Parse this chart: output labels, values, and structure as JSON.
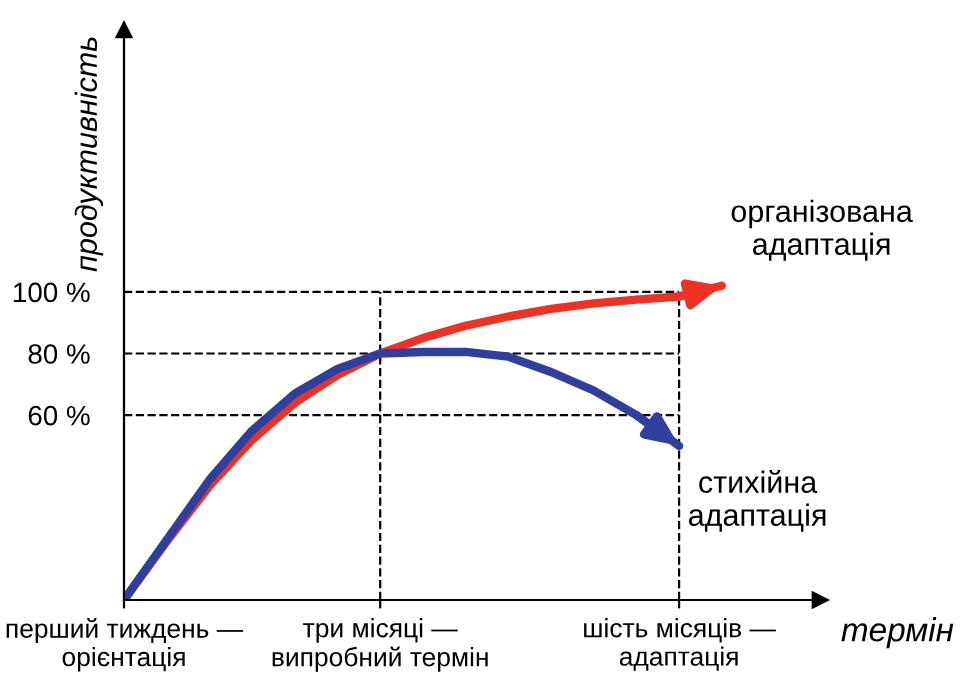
{
  "chart_data": {
    "type": "line",
    "xlabel": "термін",
    "ylabel": "продуктивність",
    "categories": [
      "перший тиждень —\nорієнтація",
      null,
      null,
      null,
      null,
      null,
      "три місяці —\nвипробний термін",
      null,
      null,
      null,
      null,
      null,
      null,
      "шість місяців —\nадаптація",
      null,
      null
    ],
    "ylim": [
      0,
      185
    ],
    "yticks": [
      {
        "value": 60,
        "label": "60 %"
      },
      {
        "value": 80,
        "label": "80 %"
      },
      {
        "value": 100,
        "label": "100 %"
      }
    ],
    "series": [
      {
        "name": "організована\nадаптація",
        "color": "#ee3124",
        "values": [
          0,
          19,
          37,
          52,
          64,
          73,
          80,
          85,
          89,
          92,
          94.5,
          96.3,
          97.5,
          98.5,
          102,
          null
        ]
      },
      {
        "name": "стихійна\nадаптація",
        "color": "#2e3f9e",
        "values": [
          0,
          19.5,
          39,
          55,
          67,
          75,
          80,
          80.5,
          80.5,
          79,
          74,
          68,
          60,
          50,
          null,
          null
        ]
      }
    ],
    "ref_lines": [
      {
        "axis": "y",
        "value": 60,
        "line_style": "dashed",
        "color": "#000000"
      },
      {
        "axis": "y",
        "value": 80,
        "line_style": "dashed",
        "color": "#000000"
      },
      {
        "axis": "y",
        "value": 100,
        "line_style": "dashed",
        "color": "#000000"
      },
      {
        "axis": "x",
        "value": "три місяці —\nвипробний термін",
        "line_style": "dashed",
        "color": "#000000"
      },
      {
        "axis": "x",
        "value": "шість місяців —\nадаптація",
        "line_style": "dashed",
        "color": "#000000"
      }
    ],
    "grid": false,
    "legend": false,
    "marker": "none",
    "line_style": "solid"
  }
}
